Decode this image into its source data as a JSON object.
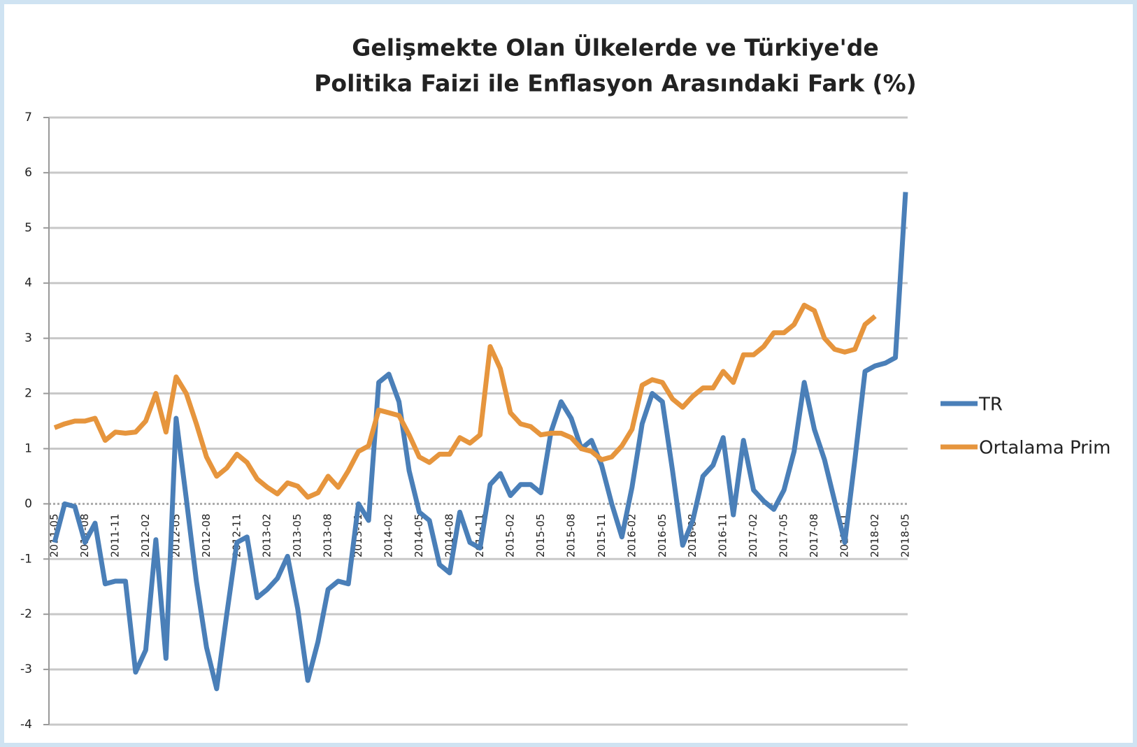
{
  "chart_data": {
    "type": "line",
    "title": [
      "Gelişmekte Olan Ülkelerde ve Türkiye'de",
      "Politika Faizi ile Enflasyon Arasındaki Fark (%)"
    ],
    "categories": [
      "2011-05",
      null,
      null,
      "2011-08",
      null,
      null,
      "2011-11",
      null,
      null,
      "2012-02",
      null,
      null,
      "2012-05",
      null,
      null,
      "2012-08",
      null,
      null,
      "2012-11",
      null,
      null,
      "2013-02",
      null,
      null,
      "2013-05",
      null,
      null,
      "2013-08",
      null,
      null,
      "2013-11",
      null,
      null,
      "2014-02",
      null,
      null,
      "2014-05",
      null,
      null,
      "2014-08",
      null,
      null,
      "2014-11",
      null,
      null,
      "2015-02",
      null,
      null,
      "2015-05",
      null,
      null,
      "2015-08",
      null,
      null,
      "2015-11",
      null,
      null,
      "2016-02",
      null,
      null,
      "2016-05",
      null,
      null,
      "2016-08",
      null,
      null,
      "2016-11",
      null,
      null,
      "2017-02",
      null,
      null,
      "2017-05",
      null,
      null,
      "2017-08",
      null,
      null,
      "2017-11",
      null,
      null,
      "2018-02",
      null,
      null,
      "2018-05"
    ],
    "series": [
      {
        "name": "TR",
        "color": "#4a7fb8",
        "values": [
          -0.7,
          0.0,
          -0.05,
          -0.7,
          -0.35,
          -1.45,
          -1.4,
          -1.4,
          -3.05,
          -2.65,
          -0.65,
          -2.8,
          1.55,
          0.1,
          -1.4,
          -2.6,
          -3.35,
          -2.0,
          -0.7,
          -0.6,
          -1.7,
          -1.55,
          -1.35,
          -0.95,
          -1.9,
          -3.2,
          -2.5,
          -1.55,
          -1.4,
          -1.45,
          0.0,
          -0.3,
          2.2,
          2.35,
          1.85,
          0.6,
          -0.15,
          -0.3,
          -1.1,
          -1.25,
          -0.15,
          -0.7,
          -0.8,
          0.35,
          0.55,
          0.15,
          0.35,
          0.35,
          0.2,
          1.3,
          1.85,
          1.55,
          1.0,
          1.15,
          0.7,
          0.0,
          -0.6,
          0.3,
          1.45,
          2.0,
          1.85,
          0.6,
          -0.75,
          -0.3,
          0.5,
          0.7,
          1.2,
          -0.2,
          1.15,
          0.25,
          0.05,
          -0.1,
          0.25,
          0.95,
          2.2,
          1.35,
          0.8,
          0.05,
          -0.7,
          0.8,
          2.4,
          2.5,
          2.55,
          2.65,
          5.65
        ]
      },
      {
        "name": "Ortalama Prim",
        "color": "#e6953d",
        "values": [
          1.38,
          1.45,
          1.5,
          1.5,
          1.55,
          1.15,
          1.3,
          1.28,
          1.3,
          1.5,
          2.0,
          1.3,
          2.3,
          2.0,
          1.45,
          0.85,
          0.5,
          0.65,
          0.9,
          0.75,
          0.45,
          0.3,
          0.18,
          0.38,
          0.32,
          0.12,
          0.2,
          0.5,
          0.3,
          0.6,
          0.95,
          1.05,
          1.7,
          1.65,
          1.6,
          1.25,
          0.85,
          0.75,
          0.9,
          0.9,
          1.2,
          1.1,
          1.25,
          2.85,
          2.45,
          1.65,
          1.45,
          1.4,
          1.25,
          1.28,
          1.28,
          1.2,
          1.0,
          0.95,
          0.8,
          0.85,
          1.05,
          1.35,
          2.15,
          2.25,
          2.2,
          1.9,
          1.75,
          1.95,
          2.1,
          2.1,
          2.4,
          2.2,
          2.7,
          2.7,
          2.85,
          3.1,
          3.1,
          3.25,
          3.6,
          3.5,
          3.0,
          2.8,
          2.75,
          2.8,
          3.25,
          3.4,
          null,
          null,
          null
        ]
      }
    ],
    "ylim": [
      -4,
      7
    ],
    "yticks": [
      -4,
      -3,
      -2,
      -1,
      0,
      1,
      2,
      3,
      4,
      5,
      6,
      7
    ],
    "grid": true,
    "legend": "right"
  }
}
